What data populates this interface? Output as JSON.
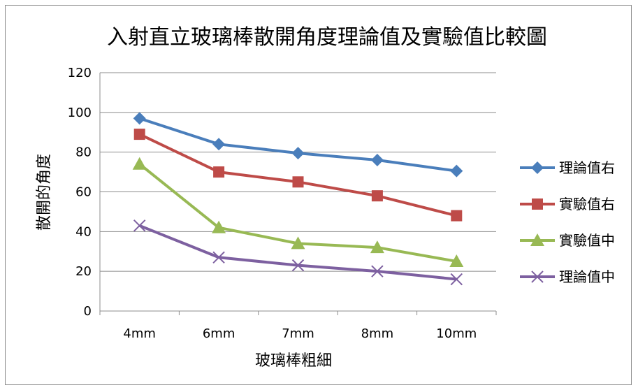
{
  "chart_data": {
    "type": "line",
    "title": "入射直立玻璃棒散開角度理論值及實驗值比較圖",
    "xlabel": "玻璃棒粗細",
    "ylabel": "散開的角度",
    "categories": [
      "4mm",
      "6mm",
      "7mm",
      "8mm",
      "10mm"
    ],
    "ylim": [
      0,
      120
    ],
    "yticks": [
      0,
      20,
      40,
      60,
      80,
      100,
      120
    ],
    "grid": true,
    "legend_position": "right",
    "series": [
      {
        "name": "理論值右",
        "values": [
          97,
          84,
          79.5,
          76,
          70.5
        ],
        "color": "#4a7ebb",
        "marker": "diamond"
      },
      {
        "name": "實驗值右",
        "values": [
          89,
          70,
          65,
          58,
          48
        ],
        "color": "#be4b48",
        "marker": "square"
      },
      {
        "name": "實驗值中",
        "values": [
          74,
          42,
          34,
          32,
          25
        ],
        "color": "#98b954",
        "marker": "triangle"
      },
      {
        "name": "理論值中",
        "values": [
          43,
          27,
          23,
          20,
          16
        ],
        "color": "#7d60a0",
        "marker": "x"
      }
    ]
  }
}
